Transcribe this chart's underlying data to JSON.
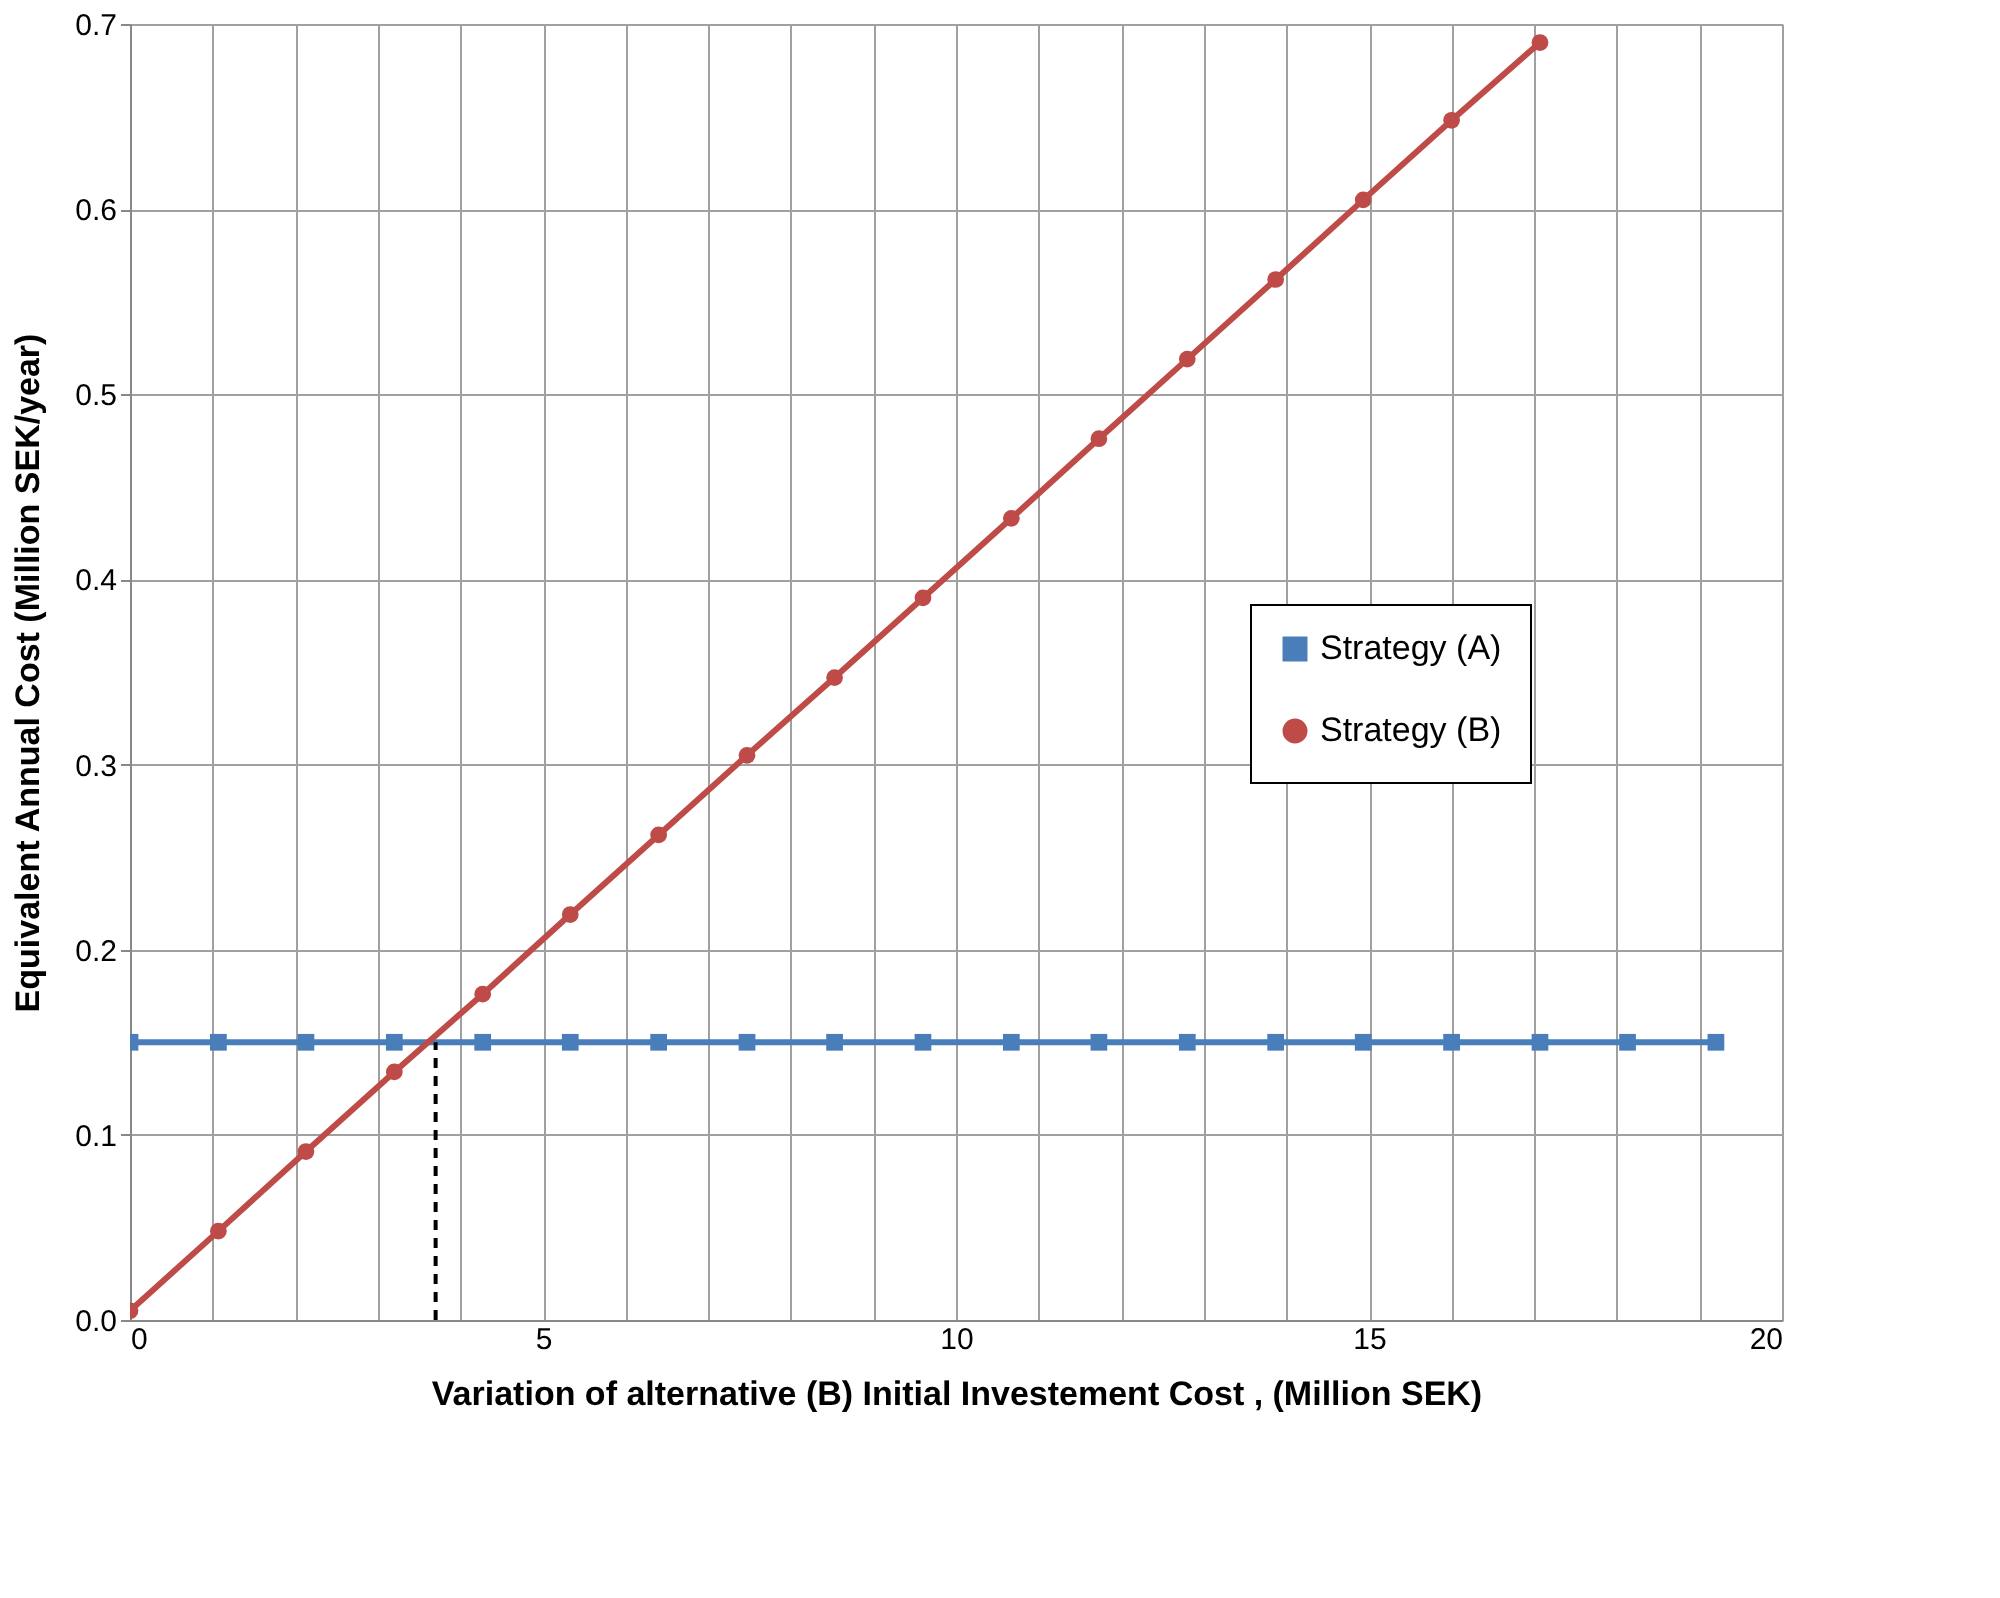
{
  "chart_data": {
    "type": "line",
    "xlabel": "Variation of alternative (B) Initial Investement Cost , (Million SEK)",
    "ylabel": "Equivalent Annual Cost (Million SEK/year)",
    "x": [
      0,
      1.07,
      2.13,
      3.2,
      4.27,
      5.33,
      6.4,
      7.47,
      8.53,
      9.6,
      10.67,
      11.73,
      12.8,
      13.87,
      14.93,
      16.0,
      17.07,
      18.13,
      19.2
    ],
    "series": [
      {
        "name": "Strategy (A)",
        "color": "#4a7ebb",
        "marker": "square",
        "values": [
          0.15,
          0.15,
          0.15,
          0.15,
          0.15,
          0.15,
          0.15,
          0.15,
          0.15,
          0.15,
          0.15,
          0.15,
          0.15,
          0.15,
          0.15,
          0.15,
          0.15,
          0.15,
          0.15
        ]
      },
      {
        "name": "Strategy (B)",
        "color": "#be4b48",
        "marker": "circle",
        "values": [
          0.005,
          0.048,
          0.091,
          0.134,
          0.176,
          0.219,
          0.262,
          0.305,
          0.347,
          0.39,
          0.433,
          0.476,
          0.519,
          0.562,
          0.605,
          0.648,
          0.69,
          null,
          null
        ]
      }
    ],
    "xlim": [
      0,
      20
    ],
    "xticks": [
      0,
      {
        "value": 1,
        "label": null
      },
      {
        "value": 2,
        "label": null
      },
      {
        "value": 3,
        "label": null
      },
      {
        "value": 4,
        "label": null
      },
      5,
      {
        "value": 6,
        "label": null
      },
      {
        "value": 7,
        "label": null
      },
      {
        "value": 8,
        "label": null
      },
      {
        "value": 9,
        "label": null
      },
      10,
      {
        "value": 11,
        "label": null
      },
      {
        "value": 12,
        "label": null
      },
      {
        "value": 13,
        "label": null
      },
      {
        "value": 14,
        "label": null
      },
      15,
      {
        "value": 16,
        "label": null
      },
      {
        "value": 17,
        "label": null
      },
      {
        "value": 18,
        "label": null
      },
      {
        "value": 19,
        "label": null
      },
      20
    ],
    "ylim": [
      0,
      0.7
    ],
    "yticks": [
      {
        "value": 0,
        "label": "0.0"
      },
      0.1,
      0.2,
      0.3,
      0.4,
      0.5,
      0.6,
      0.7
    ],
    "ref_lines": [
      {
        "axis": "x",
        "value": 3.7,
        "label": null,
        "color": "#000000",
        "line_style": "dashed"
      }
    ],
    "grid": true,
    "legend": "right",
    "line_style": "solid"
  }
}
